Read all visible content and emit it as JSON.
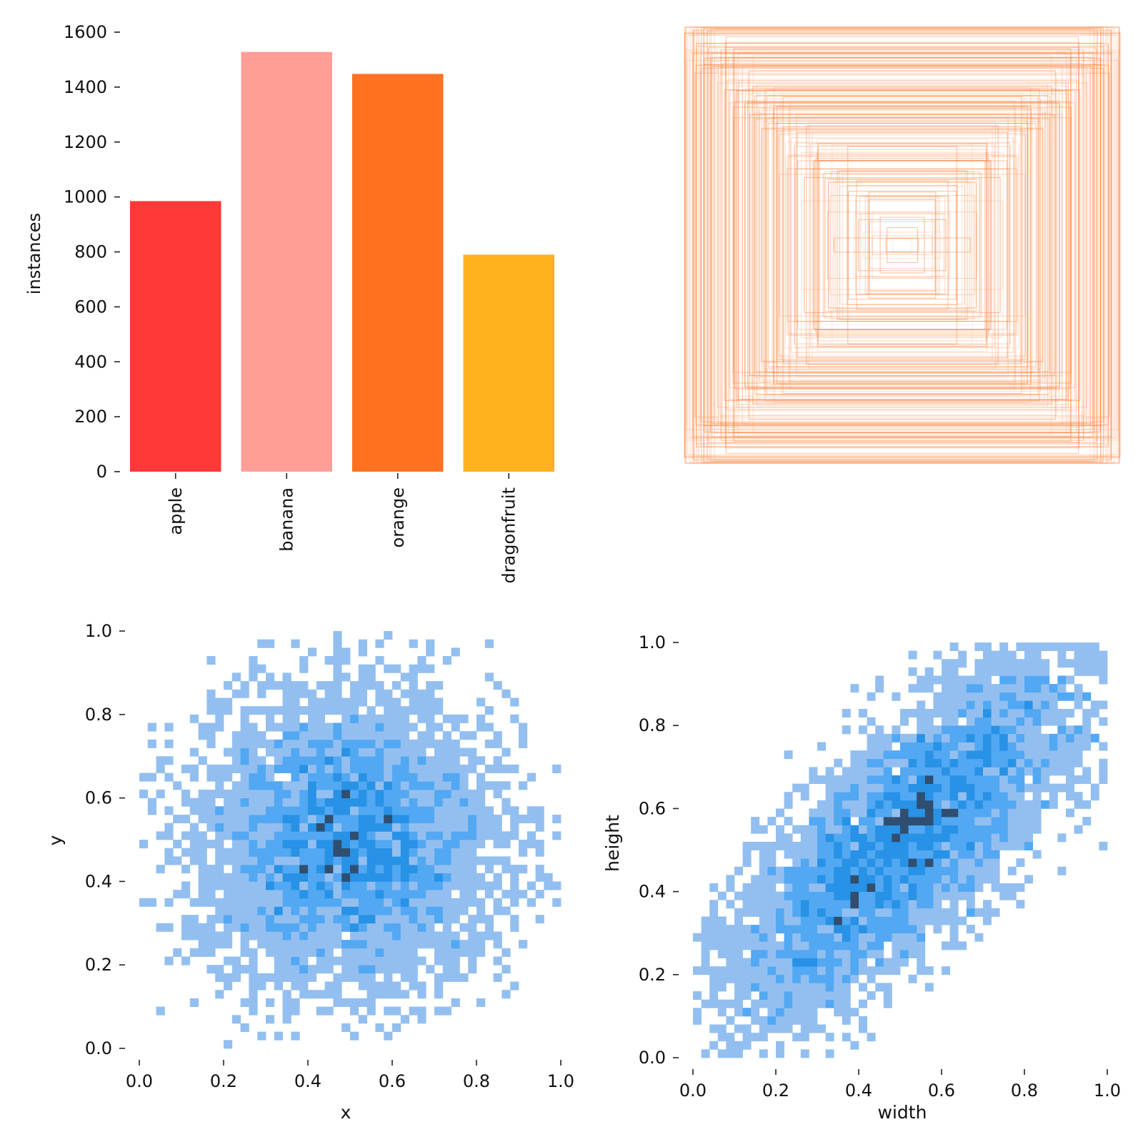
{
  "chart_data": [
    {
      "type": "bar",
      "panel": "top-left",
      "categories": [
        "apple",
        "banana",
        "orange",
        "dragonfruit"
      ],
      "values": [
        985,
        1528,
        1448,
        790
      ],
      "colors": [
        "#FF3838",
        "#FF9D97",
        "#FF701F",
        "#FFB21D"
      ],
      "xlabel": "",
      "ylabel": "instances",
      "ylim": [
        0,
        1600
      ],
      "yticks": [
        0,
        200,
        400,
        600,
        800,
        1000,
        1200,
        1400,
        1600
      ],
      "ytick_labels": [
        "0",
        "200",
        "400",
        "600",
        "800",
        "1000",
        "1200",
        "1400",
        "1600"
      ],
      "tick_label_rotation": "vertical"
    },
    {
      "type": "boxes",
      "panel": "top-right",
      "description": "overlay of centered bounding boxes of normalized width and height",
      "n_boxes": 220,
      "width_range": [
        0.03,
        1.0
      ],
      "height_range": [
        0.03,
        1.0
      ],
      "color": "#FF701F",
      "axes": "hidden"
    },
    {
      "type": "heatmap",
      "panel": "bottom-left",
      "description": "2D histogram of box centers",
      "xlabel": "x",
      "ylabel": "y",
      "xlim": [
        0,
        1
      ],
      "ylim": [
        0,
        1
      ],
      "xticks": [
        "0.0",
        "0.2",
        "0.4",
        "0.6",
        "0.8",
        "1.0"
      ],
      "yticks": [
        "0.0",
        "0.2",
        "0.4",
        "0.6",
        "0.8",
        "1.0"
      ],
      "x_mean": 0.5,
      "y_mean": 0.5,
      "x_std": 0.17,
      "y_std": 0.17,
      "correlation": 0.0,
      "bins": 50,
      "n_samples": 4751,
      "colors": [
        "#93BFF0",
        "#52A8F2",
        "#2792E6",
        "#2F4E70"
      ]
    },
    {
      "type": "heatmap",
      "panel": "bottom-right",
      "description": "2D histogram of box width vs height",
      "xlabel": "width",
      "ylabel": "height",
      "xlim": [
        0,
        1
      ],
      "ylim": [
        0,
        1
      ],
      "xticks": [
        "0.0",
        "0.2",
        "0.4",
        "0.6",
        "0.8",
        "1.0"
      ],
      "yticks": [
        "0.0",
        "0.2",
        "0.4",
        "0.6",
        "0.8",
        "1.0"
      ],
      "x_mean": 0.5,
      "y_mean": 0.52,
      "x_std": 0.22,
      "y_std": 0.22,
      "correlation": 0.78,
      "bins": 50,
      "n_samples": 4751,
      "colors": [
        "#93BFF0",
        "#52A8F2",
        "#2792E6",
        "#2F4E70"
      ]
    }
  ]
}
